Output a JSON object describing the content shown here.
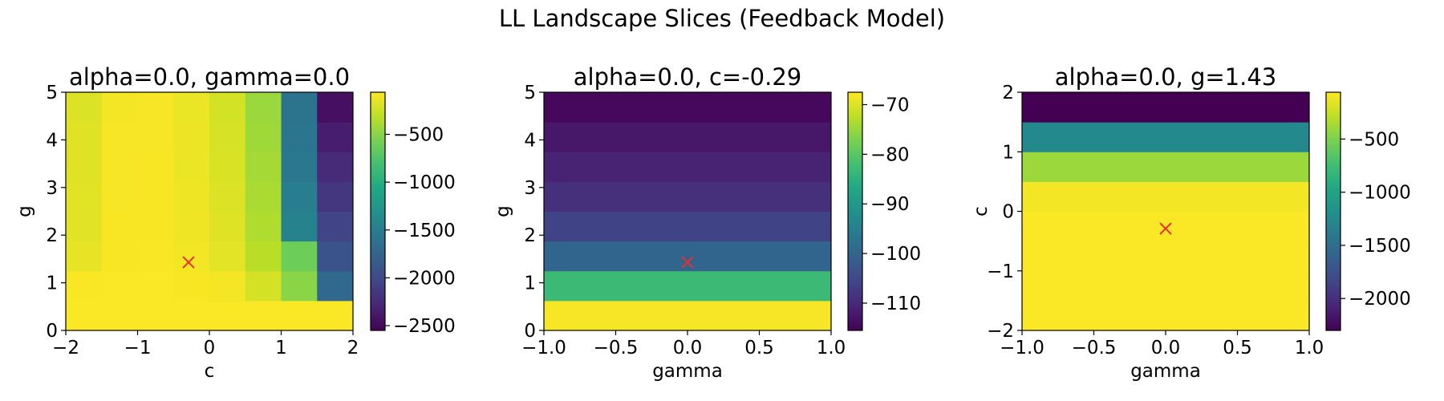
{
  "figure": {
    "suptitle": "LL Landscape Slices (Feedback Model)"
  },
  "chart_data": [
    {
      "type": "heatmap",
      "title": "alpha=0.0, gamma=0.0",
      "xlabel": "c",
      "ylabel": "g",
      "xlim": [
        -2,
        2
      ],
      "ylim": [
        0,
        5
      ],
      "xticks": [
        -2,
        -1,
        0,
        1,
        2
      ],
      "yticks": [
        0,
        1,
        2,
        3,
        4,
        5
      ],
      "xtick_labels": [
        "−2",
        "−1",
        "0",
        "1",
        "2"
      ],
      "ytick_labels": [
        "0",
        "1",
        "2",
        "3",
        "4",
        "5"
      ],
      "colormap": "viridis",
      "color_range": [
        -2550,
        -60
      ],
      "colorbar_ticks": [
        -500,
        -1000,
        -1500,
        -2000,
        -2500
      ],
      "colorbar_tick_labels": [
        "−500",
        "−1000",
        "−1500",
        "−2000",
        "−2500"
      ],
      "marker": {
        "x": -0.29,
        "y": 1.43,
        "symbol": "x",
        "color": "#e8312a"
      },
      "x_edges": [
        -2,
        -1.5,
        -1,
        -0.5,
        0,
        0.5,
        1,
        1.5,
        2
      ],
      "y_edges": [
        0,
        0.625,
        1.25,
        1.875,
        2.5,
        3.125,
        3.75,
        4.375,
        5
      ],
      "z_rows_bottom_to_top": [
        [
          -70,
          -70,
          -70,
          -70,
          -70,
          -70,
          -70,
          -70
        ],
        [
          -75,
          -72,
          -72,
          -80,
          -90,
          -220,
          -500,
          -1700
        ],
        [
          -150,
          -80,
          -75,
          -100,
          -160,
          -320,
          -620,
          -1900
        ],
        [
          -170,
          -80,
          -78,
          -110,
          -180,
          -360,
          -1450,
          -2050
        ],
        [
          -170,
          -85,
          -80,
          -120,
          -190,
          -380,
          -1500,
          -2150
        ],
        [
          -175,
          -85,
          -80,
          -125,
          -200,
          -400,
          -1550,
          -2250
        ],
        [
          -180,
          -88,
          -82,
          -130,
          -210,
          -420,
          -1580,
          -2350
        ],
        [
          -190,
          -90,
          -85,
          -135,
          -220,
          -440,
          -1600,
          -2450
        ]
      ]
    },
    {
      "type": "heatmap",
      "title": "alpha=0.0, c=-0.29",
      "xlabel": "gamma",
      "ylabel": "g",
      "xlim": [
        -1,
        1
      ],
      "ylim": [
        0,
        5
      ],
      "xticks": [
        -1,
        -0.5,
        0,
        0.5,
        1
      ],
      "yticks": [
        0,
        1,
        2,
        3,
        4,
        5
      ],
      "xtick_labels": [
        "−1.0",
        "−0.5",
        "0.0",
        "0.5",
        "1.0"
      ],
      "ytick_labels": [
        "0",
        "1",
        "2",
        "3",
        "4",
        "5"
      ],
      "colormap": "viridis",
      "color_range": [
        -115.5,
        -67.5
      ],
      "colorbar_ticks": [
        -70,
        -80,
        -90,
        -100,
        -110
      ],
      "colorbar_tick_labels": [
        "−70",
        "−80",
        "−90",
        "−100",
        "−110"
      ],
      "marker": {
        "x": 0.0,
        "y": 1.43,
        "symbol": "x",
        "color": "#e8312a"
      },
      "x_edges": [
        -1,
        1
      ],
      "y_edges": [
        0,
        0.625,
        1.25,
        1.875,
        2.5,
        3.125,
        3.75,
        4.375,
        5
      ],
      "z_rows_bottom_to_top": [
        [
          -68
        ],
        [
          -83
        ],
        [
          -100
        ],
        [
          -106
        ],
        [
          -109
        ],
        [
          -111
        ],
        [
          -112.5
        ],
        [
          -114.5
        ]
      ]
    },
    {
      "type": "heatmap",
      "title": "alpha=0.0, g=1.43",
      "xlabel": "gamma",
      "ylabel": "c",
      "xlim": [
        -1,
        1
      ],
      "ylim": [
        -2,
        2
      ],
      "xticks": [
        -1,
        -0.5,
        0,
        0.5,
        1
      ],
      "yticks": [
        -2,
        -1,
        0,
        1,
        2
      ],
      "xtick_labels": [
        "−1.0",
        "−0.5",
        "0.0",
        "0.5",
        "1.0"
      ],
      "ytick_labels": [
        "−2",
        "−1",
        "0",
        "1",
        "2"
      ],
      "colormap": "viridis",
      "color_range": [
        -2300,
        -60
      ],
      "colorbar_ticks": [
        -500,
        -1000,
        -1500,
        -2000
      ],
      "colorbar_tick_labels": [
        "−500",
        "−1000",
        "−1500",
        "−2000"
      ],
      "marker": {
        "x": 0.0,
        "y": -0.29,
        "symbol": "x",
        "color": "#e8312a"
      },
      "x_edges": [
        -1,
        1
      ],
      "y_edges": [
        -2,
        -1.5,
        -1,
        -0.5,
        0,
        0.5,
        1,
        1.5,
        2
      ],
      "z_rows_bottom_to_top": [
        [
          -70
        ],
        [
          -70
        ],
        [
          -70
        ],
        [
          -70
        ],
        [
          -100
        ],
        [
          -400
        ],
        [
          -1250
        ],
        [
          -2300
        ]
      ]
    }
  ]
}
